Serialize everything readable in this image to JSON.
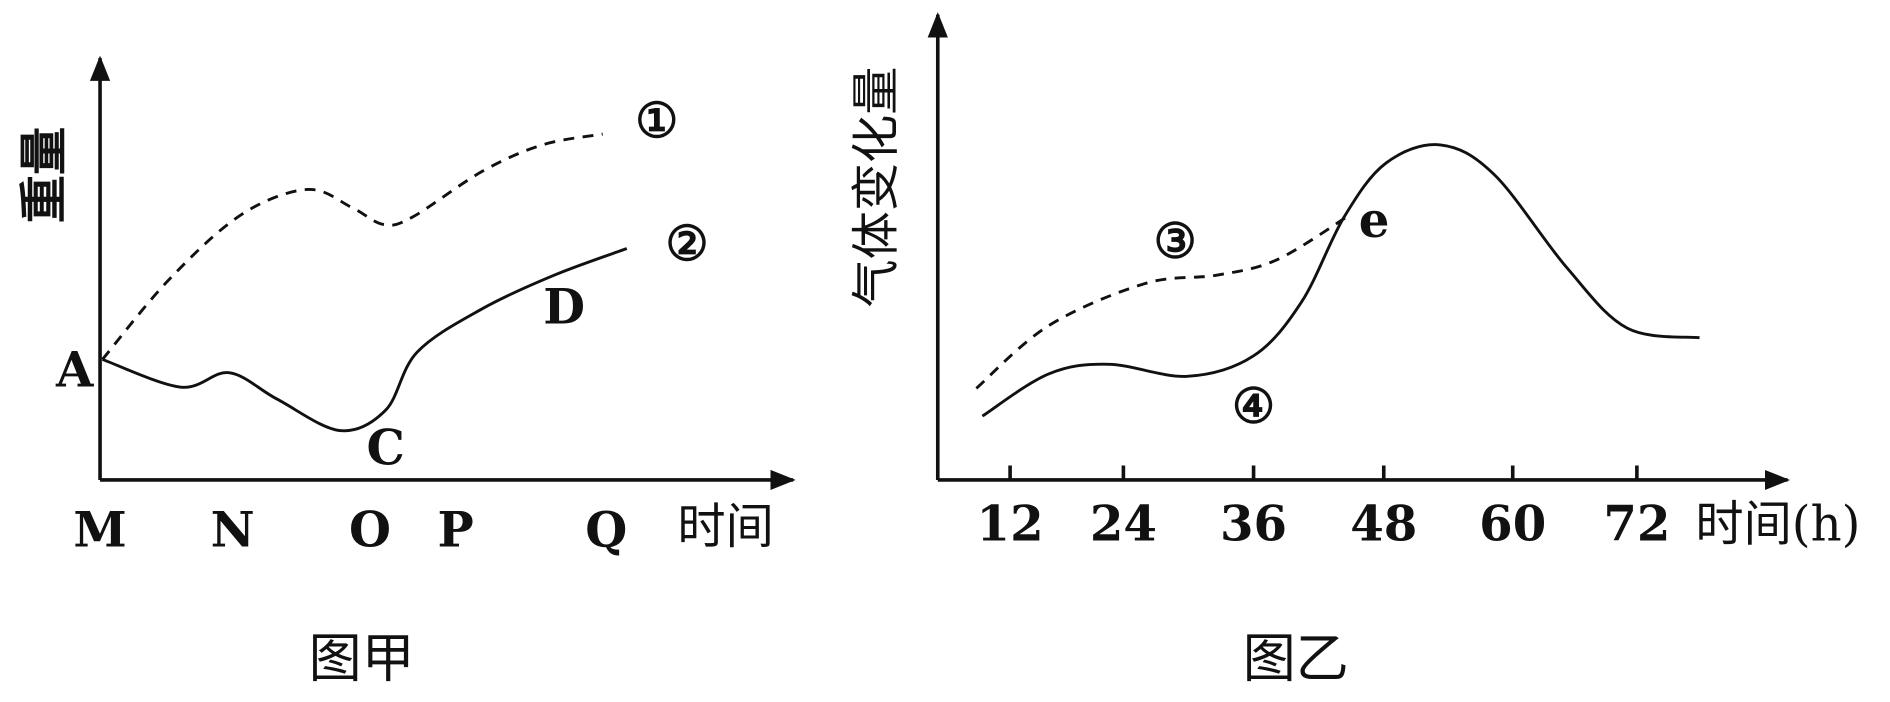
{
  "left": {
    "y_label": "重量",
    "x_labels": [
      "M",
      "N",
      "O",
      "P",
      "Q"
    ],
    "x_axis_label": "时间",
    "point_labels": [
      "A",
      "C",
      "D"
    ],
    "curve_labels": [
      "①",
      "②"
    ],
    "caption": "图甲"
  },
  "right": {
    "y_label": "气体变化量",
    "x_labels": [
      "12",
      "24",
      "36",
      "48",
      "60",
      "72"
    ],
    "x_axis_label": "时间(h)",
    "point_labels": [
      "e"
    ],
    "curve_labels": [
      "③",
      "④"
    ],
    "caption": "图乙"
  }
}
